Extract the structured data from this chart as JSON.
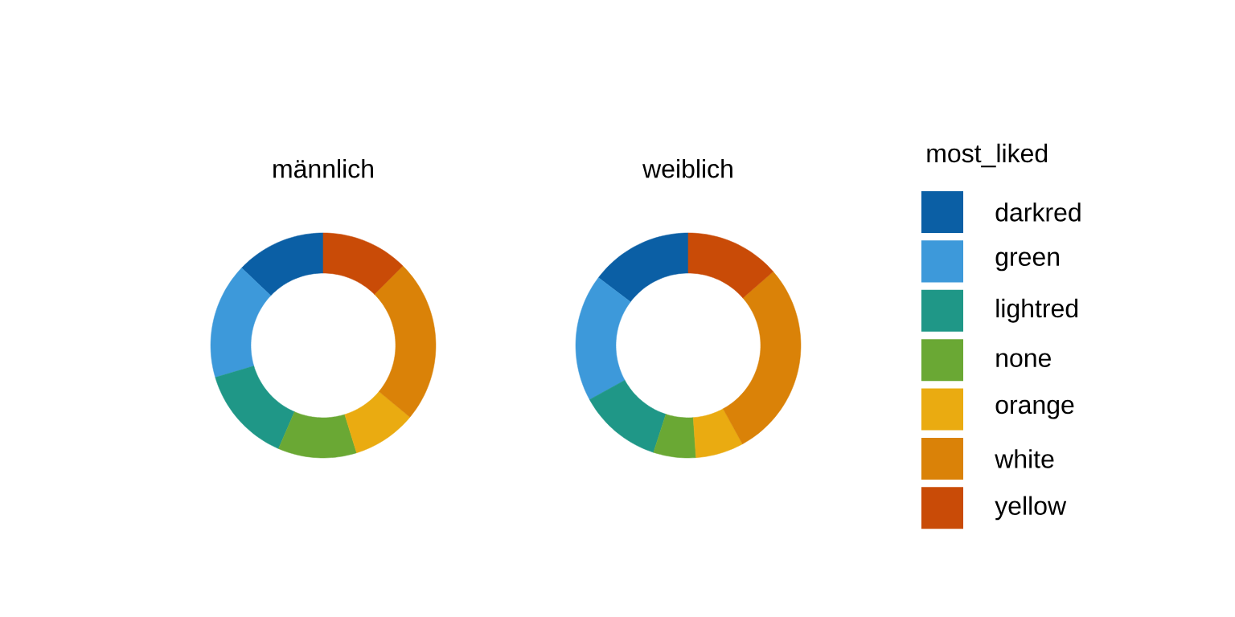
{
  "chart_data": {
    "type": "donut",
    "categories": [
      "darkred",
      "green",
      "lightred",
      "none",
      "orange",
      "white",
      "yellow"
    ],
    "colors": [
      "#0b5fa5",
      "#3d99da",
      "#1f9787",
      "#6aa834",
      "#eaab11",
      "#da8208",
      "#c94b07"
    ],
    "legend": "right",
    "legend_title": "most_liked",
    "series": [
      {
        "name": "männlich",
        "values": [
          12.9,
          16.7,
          13.9,
          11.3,
          9.2,
          23.5,
          12.5
        ]
      },
      {
        "name": "weiblich",
        "values": [
          14.7,
          18.3,
          12.0,
          6.1,
          6.9,
          28.4,
          13.6
        ]
      }
    ]
  }
}
